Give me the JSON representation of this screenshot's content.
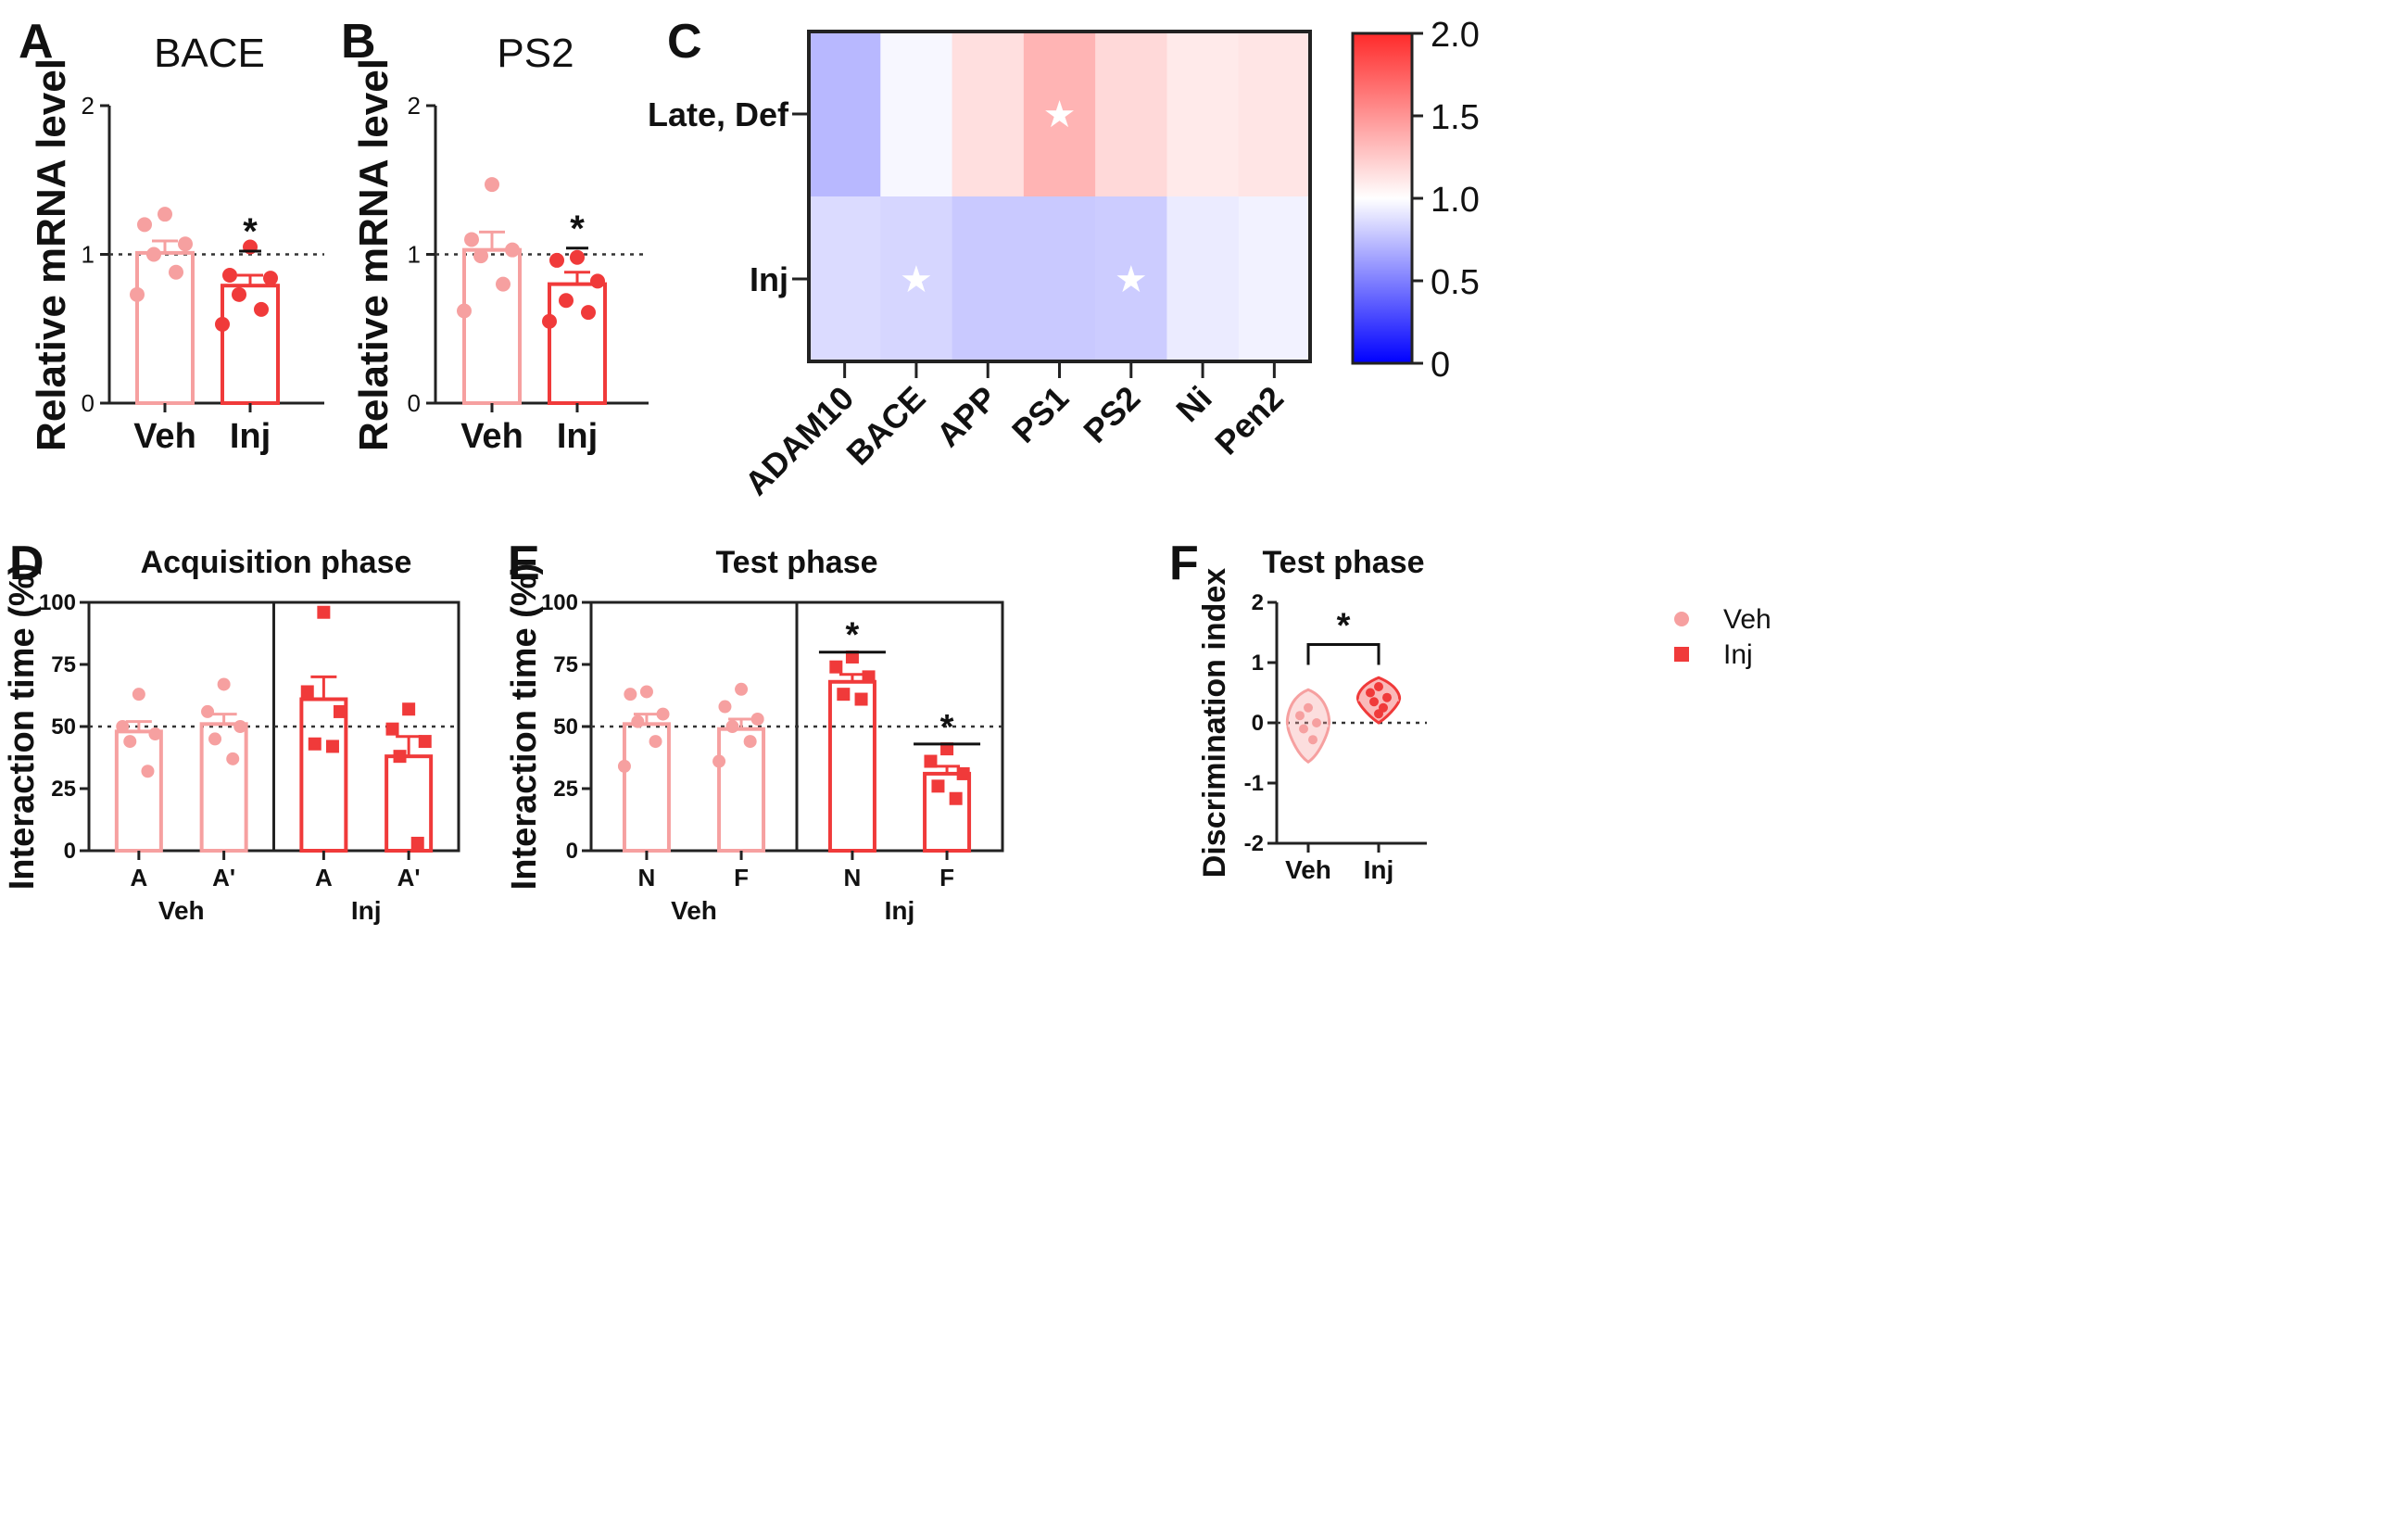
{
  "colors": {
    "veh": "#f6a0a0",
    "veh_dark": "#f08c8c",
    "inj": "#f03a3a",
    "inj_dark": "#ec2a2a",
    "axis": "#222222",
    "heat_low": "#0000ff",
    "heat_mid": "#ffffff",
    "heat_high": "#ff2a2a"
  },
  "chart_data": [
    {
      "panel": "A",
      "type": "bar",
      "title": "BACE",
      "ylabel": "Relative mRNA level",
      "xlabel": "",
      "categories": [
        "Veh",
        "Inj"
      ],
      "values": [
        1.01,
        0.79
      ],
      "errors": [
        0.08,
        0.07
      ],
      "points": [
        [
          1.27,
          1.2,
          1.07,
          1.0,
          0.88,
          0.73
        ],
        [
          1.05,
          0.86,
          0.84,
          0.73,
          0.63,
          0.53
        ]
      ],
      "ylim": [
        0,
        2
      ],
      "yticks": [
        0,
        1,
        2
      ],
      "ref_line": 1,
      "significance": [
        {
          "label": "*",
          "category": "Inj"
        }
      ]
    },
    {
      "panel": "B",
      "type": "bar",
      "title": "PS2",
      "ylabel": "Relative mRNA level",
      "xlabel": "",
      "categories": [
        "Veh",
        "Inj"
      ],
      "values": [
        1.03,
        0.8
      ],
      "errors": [
        0.12,
        0.08
      ],
      "points": [
        [
          1.47,
          1.1,
          1.03,
          0.99,
          0.8,
          0.62
        ],
        [
          0.98,
          0.96,
          0.82,
          0.69,
          0.61,
          0.55
        ]
      ],
      "ylim": [
        0,
        2
      ],
      "yticks": [
        0,
        1,
        2
      ],
      "ref_line": 1,
      "significance": [
        {
          "label": "*",
          "category": "Inj"
        }
      ]
    },
    {
      "panel": "C",
      "type": "heatmap",
      "columns": [
        "ADAM10",
        "BACE",
        "APP",
        "PS1",
        "PS2",
        "Ni",
        "Pen2"
      ],
      "rows": [
        "Late, Def",
        "Inj"
      ],
      "values": [
        [
          0.72,
          0.97,
          1.15,
          1.35,
          1.18,
          1.1,
          1.12
        ],
        [
          0.86,
          0.84,
          0.79,
          0.79,
          0.8,
          0.92,
          0.95
        ]
      ],
      "stars": [
        [
          false,
          false,
          false,
          true,
          false,
          false,
          false
        ],
        [
          false,
          true,
          false,
          false,
          true,
          false,
          false
        ]
      ],
      "star_symbol": "★",
      "colorbar": {
        "min": 0,
        "mid": 1,
        "max": 2,
        "ticks": [
          "0",
          "0.5",
          "1.0",
          "1.5",
          "2.0"
        ]
      }
    },
    {
      "panel": "D",
      "type": "bar",
      "title": "Acquisition phase",
      "ylabel": "Interaction time (%)",
      "groups": [
        "Veh",
        "Inj"
      ],
      "categories": [
        "A",
        "A'"
      ],
      "values": [
        [
          48,
          51
        ],
        [
          61,
          38
        ]
      ],
      "errors": [
        [
          4,
          4
        ],
        [
          9,
          8
        ]
      ],
      "points": [
        [
          [
            63,
            50,
            47,
            44,
            32
          ],
          [
            67,
            56,
            50,
            45,
            37
          ]
        ],
        [
          [
            96,
            64,
            56,
            43,
            42
          ],
          [
            57,
            49,
            44,
            38,
            3
          ]
        ]
      ],
      "ylim": [
        0,
        100
      ],
      "yticks": [
        0,
        25,
        50,
        75,
        100
      ],
      "ref_line": 50
    },
    {
      "panel": "E",
      "type": "bar",
      "title": "Test phase",
      "ylabel": "Interaction time (%)",
      "groups": [
        "Veh",
        "Inj"
      ],
      "categories": [
        "N",
        "F"
      ],
      "values": [
        [
          51,
          49
        ],
        [
          68,
          31
        ]
      ],
      "errors": [
        [
          4,
          4
        ],
        [
          3,
          3
        ]
      ],
      "points": [
        [
          [
            64,
            63,
            55,
            52,
            44,
            34
          ],
          [
            65,
            58,
            53,
            50,
            44,
            36
          ]
        ],
        [
          [
            78,
            74,
            70,
            63,
            61
          ],
          [
            41,
            36,
            31,
            26,
            21
          ]
        ]
      ],
      "ylim": [
        0,
        100
      ],
      "yticks": [
        0,
        25,
        50,
        75,
        100
      ],
      "ref_line": 50,
      "legend": [
        {
          "label": "Veh",
          "marker": "circle"
        },
        {
          "label": "Inj",
          "marker": "square"
        }
      ],
      "significance": [
        {
          "label": "*",
          "group": "Inj",
          "category": "N"
        },
        {
          "label": "*",
          "group": "Inj",
          "category": "F"
        }
      ]
    },
    {
      "panel": "F",
      "type": "violin",
      "title": "Test phase",
      "ylabel": "Discrimination index",
      "categories": [
        "Veh",
        "Inj"
      ],
      "points": [
        [
          0.25,
          0.12,
          0.0,
          -0.1,
          -0.28
        ],
        [
          0.6,
          0.5,
          0.42,
          0.35,
          0.25,
          0.15
        ]
      ],
      "ranges": [
        [
          -0.65,
          0.55
        ],
        [
          0.0,
          0.75
        ]
      ],
      "ylim": [
        -2,
        2
      ],
      "yticks": [
        -2,
        -1,
        0,
        1,
        2
      ],
      "ref_line": 0,
      "significance": [
        {
          "label": "*",
          "between": [
            "Veh",
            "Inj"
          ]
        }
      ]
    }
  ]
}
